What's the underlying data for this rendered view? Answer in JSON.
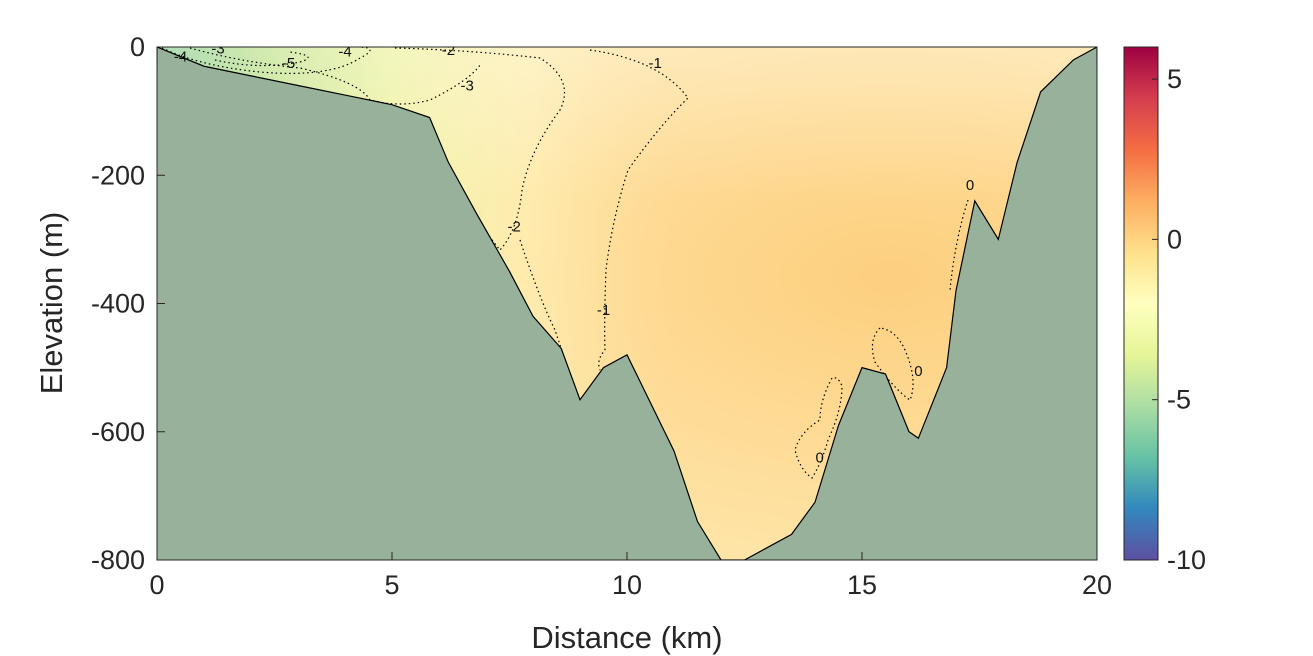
{
  "chart_data": {
    "type": "heatmap",
    "title": "",
    "xlabel": "Distance (km)",
    "ylabel": "Elevation (m)",
    "xlim": [
      0,
      20
    ],
    "ylim": [
      -800,
      0
    ],
    "xticks": [
      "0",
      "5",
      "10",
      "15",
      "20"
    ],
    "yticks": [
      "0",
      "-200",
      "-400",
      "-600",
      "-800"
    ],
    "grid": false,
    "colorbar": {
      "range": [
        -10,
        6
      ],
      "ticks": [
        "5",
        "0",
        "-5",
        "-10"
      ],
      "colormap": [
        "#5e4fa2",
        "#3288bd",
        "#66c2a5",
        "#abdda4",
        "#e6f598",
        "#ffffbf",
        "#fee08b",
        "#fdae61",
        "#f46d43",
        "#d53e4f",
        "#9e0142"
      ]
    },
    "seafloor_color": "#98b19a",
    "bathymetry": {
      "distance_km": [
        0,
        1,
        2,
        3,
        4,
        5,
        5.8,
        6.2,
        6.8,
        7.5,
        8,
        8.6,
        9,
        9.5,
        10,
        11,
        11.5,
        12,
        12.5,
        13,
        13.5,
        14,
        14.5,
        15,
        15.5,
        16,
        16.2,
        16.8,
        17,
        17.4,
        17.9,
        18.3,
        18.8,
        19.5,
        20
      ],
      "elevation_m": [
        0,
        -30,
        -45,
        -60,
        -75,
        -90,
        -110,
        -180,
        -260,
        -350,
        -420,
        -470,
        -550,
        -500,
        -480,
        -630,
        -740,
        -800,
        -800,
        -780,
        -760,
        -710,
        -590,
        -500,
        -510,
        -600,
        -610,
        -500,
        -380,
        -240,
        -300,
        -180,
        -70,
        -20,
        0
      ]
    },
    "contours": [
      {
        "level": "-4",
        "label": "-4",
        "label_km": 0.5,
        "label_m": -15
      },
      {
        "level": "-3",
        "label": "-3",
        "label_km": 1.3,
        "label_m": -2
      },
      {
        "level": "-5",
        "label": "-5",
        "label_km": 2.8,
        "label_m": -25
      },
      {
        "level": "-4",
        "label": "-4",
        "label_km": 4.0,
        "label_m": -7
      },
      {
        "level": "-2",
        "label": "-2",
        "label_km": 6.2,
        "label_m": -5
      },
      {
        "level": "-3",
        "label": "-3",
        "label_km": 6.6,
        "label_m": -60
      },
      {
        "level": "-1",
        "label": "-1",
        "label_km": 10.6,
        "label_m": -25
      },
      {
        "level": "-2",
        "label": "-2",
        "label_km": 7.6,
        "label_m": -280
      },
      {
        "level": "-1",
        "label": "-1",
        "label_km": 9.5,
        "label_m": -410
      },
      {
        "level": "0",
        "label": "0",
        "label_km": 17.3,
        "label_m": -215
      },
      {
        "level": "0",
        "label": "0",
        "label_km": 16.2,
        "label_m": -505
      },
      {
        "level": "0",
        "label": "0",
        "label_km": 14.1,
        "label_m": -640
      }
    ]
  }
}
